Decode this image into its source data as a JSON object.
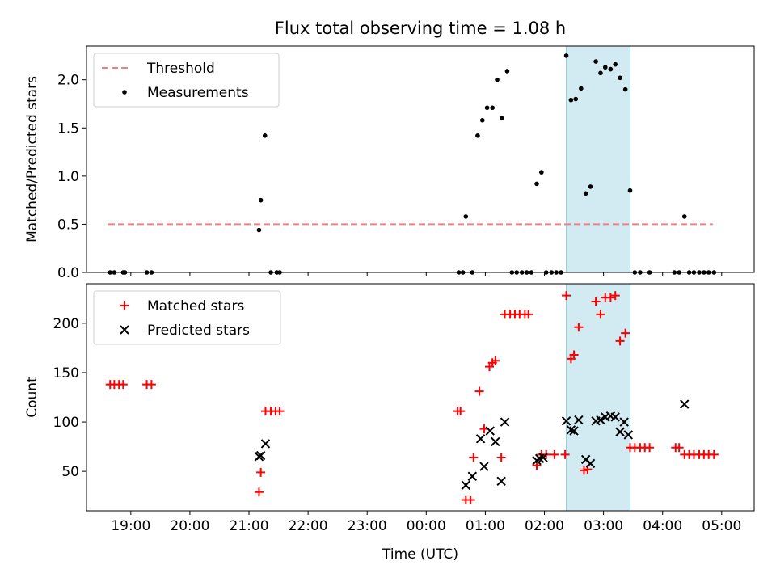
{
  "chart_data": [
    {
      "type": "scatter",
      "title": "Flux total observing time = 1.08 h",
      "xlabel": "",
      "ylabel": "Matched/Predicted stars",
      "xlim": [
        18.25,
        29.55
      ],
      "ylim": [
        0,
        2.35
      ],
      "yticks": [
        0.0,
        0.5,
        1.0,
        1.5,
        2.0
      ],
      "ytick_labels": [
        "0.0",
        "0.5",
        "1.0",
        "1.5",
        "2.0"
      ],
      "legend_position": "top-left",
      "shaded_span": {
        "x": [
          26.37,
          27.45
        ],
        "color": "#add8e6"
      },
      "series": [
        {
          "name": "Threshold",
          "kind": "dashed-line",
          "color": "#f08080",
          "x": [
            18.62,
            28.85
          ],
          "y": [
            0.5,
            0.5
          ]
        },
        {
          "name": "Measurements",
          "kind": "dot",
          "color": "#000000",
          "points": [
            [
              18.65,
              0
            ],
            [
              18.72,
              0
            ],
            [
              18.87,
              0
            ],
            [
              18.9,
              0
            ],
            [
              19.27,
              0
            ],
            [
              19.35,
              0
            ],
            [
              21.17,
              0.44
            ],
            [
              21.2,
              0.75
            ],
            [
              21.27,
              1.42
            ],
            [
              21.37,
              0
            ],
            [
              21.47,
              0
            ],
            [
              21.52,
              0
            ],
            [
              24.55,
              0
            ],
            [
              24.62,
              0
            ],
            [
              24.67,
              0.58
            ],
            [
              24.78,
              0
            ],
            [
              24.87,
              1.42
            ],
            [
              24.95,
              1.58
            ],
            [
              25.03,
              1.71
            ],
            [
              25.12,
              1.71
            ],
            [
              25.2,
              2.0
            ],
            [
              25.28,
              1.6
            ],
            [
              25.37,
              2.09
            ],
            [
              25.45,
              0
            ],
            [
              25.53,
              0
            ],
            [
              25.62,
              0
            ],
            [
              25.7,
              0
            ],
            [
              25.78,
              0
            ],
            [
              25.87,
              0.92
            ],
            [
              25.95,
              1.04
            ],
            [
              26.03,
              0
            ],
            [
              26.12,
              0
            ],
            [
              26.2,
              0
            ],
            [
              26.28,
              0
            ],
            [
              26.37,
              2.25
            ],
            [
              26.45,
              1.79
            ],
            [
              26.53,
              1.8
            ],
            [
              26.62,
              1.91
            ],
            [
              26.7,
              0.82
            ],
            [
              26.78,
              0.89
            ],
            [
              26.87,
              2.19
            ],
            [
              26.95,
              2.07
            ],
            [
              27.03,
              2.13
            ],
            [
              27.12,
              2.11
            ],
            [
              27.2,
              2.16
            ],
            [
              27.28,
              2.02
            ],
            [
              27.37,
              1.9
            ],
            [
              27.45,
              0.85
            ],
            [
              27.53,
              0
            ],
            [
              27.62,
              0
            ],
            [
              27.78,
              0
            ],
            [
              28.2,
              0
            ],
            [
              28.28,
              0
            ],
            [
              28.37,
              0.58
            ],
            [
              28.45,
              0
            ],
            [
              28.53,
              0
            ],
            [
              28.62,
              0
            ],
            [
              28.7,
              0
            ],
            [
              28.78,
              0
            ],
            [
              28.87,
              0
            ]
          ]
        }
      ]
    },
    {
      "type": "scatter",
      "title": "",
      "xlabel": "Time (UTC)",
      "ylabel": "Count",
      "xlim": [
        18.25,
        29.55
      ],
      "ylim": [
        10,
        240
      ],
      "yticks": [
        50,
        100,
        150,
        200
      ],
      "ytick_labels": [
        "50",
        "100",
        "150",
        "200"
      ],
      "xticks": [
        19,
        20,
        21,
        22,
        23,
        24,
        25,
        26,
        27,
        28,
        29
      ],
      "xtick_labels": [
        "19:00",
        "20:00",
        "21:00",
        "22:00",
        "23:00",
        "00:00",
        "01:00",
        "02:00",
        "03:00",
        "04:00",
        "05:00"
      ],
      "legend_position": "top-left",
      "shaded_span": {
        "x": [
          26.37,
          27.45
        ],
        "color": "#add8e6"
      },
      "series": [
        {
          "name": "Matched stars",
          "kind": "plus",
          "color": "#ff0000",
          "points": [
            [
              18.65,
              138
            ],
            [
              18.72,
              138
            ],
            [
              18.8,
              138
            ],
            [
              18.87,
              138
            ],
            [
              19.27,
              138
            ],
            [
              19.35,
              138
            ],
            [
              21.17,
              29
            ],
            [
              21.2,
              49
            ],
            [
              21.28,
              111
            ],
            [
              21.37,
              111
            ],
            [
              21.45,
              111
            ],
            [
              21.52,
              111
            ],
            [
              24.53,
              111
            ],
            [
              24.58,
              111
            ],
            [
              24.67,
              21
            ],
            [
              24.75,
              21
            ],
            [
              24.8,
              64
            ],
            [
              24.9,
              131
            ],
            [
              24.98,
              93
            ],
            [
              25.07,
              156
            ],
            [
              25.12,
              160
            ],
            [
              25.17,
              162
            ],
            [
              25.27,
              64
            ],
            [
              25.33,
              209
            ],
            [
              25.42,
              209
            ],
            [
              25.5,
              209
            ],
            [
              25.58,
              209
            ],
            [
              25.67,
              209
            ],
            [
              25.73,
              209
            ],
            [
              25.87,
              56
            ],
            [
              25.95,
              67
            ],
            [
              26.03,
              67
            ],
            [
              26.17,
              67
            ],
            [
              26.35,
              67
            ],
            [
              26.37,
              228
            ],
            [
              26.45,
              164
            ],
            [
              26.5,
              168
            ],
            [
              26.58,
              196
            ],
            [
              26.67,
              51
            ],
            [
              26.73,
              52
            ],
            [
              26.87,
              222
            ],
            [
              26.95,
              209
            ],
            [
              27.03,
              226
            ],
            [
              27.12,
              226
            ],
            [
              27.2,
              228
            ],
            [
              27.28,
              182
            ],
            [
              27.37,
              190
            ],
            [
              27.45,
              74
            ],
            [
              27.53,
              74
            ],
            [
              27.62,
              74
            ],
            [
              27.7,
              74
            ],
            [
              27.78,
              74
            ],
            [
              28.22,
              74
            ],
            [
              28.28,
              74
            ],
            [
              28.37,
              67
            ],
            [
              28.45,
              67
            ],
            [
              28.53,
              67
            ],
            [
              28.62,
              67
            ],
            [
              28.7,
              67
            ],
            [
              28.78,
              67
            ],
            [
              28.87,
              67
            ]
          ]
        },
        {
          "name": "Predicted stars",
          "kind": "x",
          "color": "#000000",
          "points": [
            [
              21.17,
              65
            ],
            [
              21.2,
              66
            ],
            [
              21.28,
              78
            ],
            [
              24.67,
              36
            ],
            [
              24.78,
              45
            ],
            [
              24.92,
              83
            ],
            [
              24.98,
              55
            ],
            [
              25.08,
              91
            ],
            [
              25.17,
              80
            ],
            [
              25.27,
              40
            ],
            [
              25.33,
              100
            ],
            [
              25.87,
              61
            ],
            [
              25.92,
              63
            ],
            [
              25.98,
              64
            ],
            [
              26.37,
              101
            ],
            [
              26.45,
              92
            ],
            [
              26.5,
              91
            ],
            [
              26.58,
              102
            ],
            [
              26.7,
              62
            ],
            [
              26.78,
              58
            ],
            [
              26.87,
              101
            ],
            [
              26.95,
              102
            ],
            [
              27.03,
              105
            ],
            [
              27.12,
              106
            ],
            [
              27.2,
              105
            ],
            [
              27.28,
              90
            ],
            [
              27.35,
              100
            ],
            [
              27.42,
              87
            ],
            [
              28.37,
              118
            ]
          ]
        }
      ]
    }
  ]
}
